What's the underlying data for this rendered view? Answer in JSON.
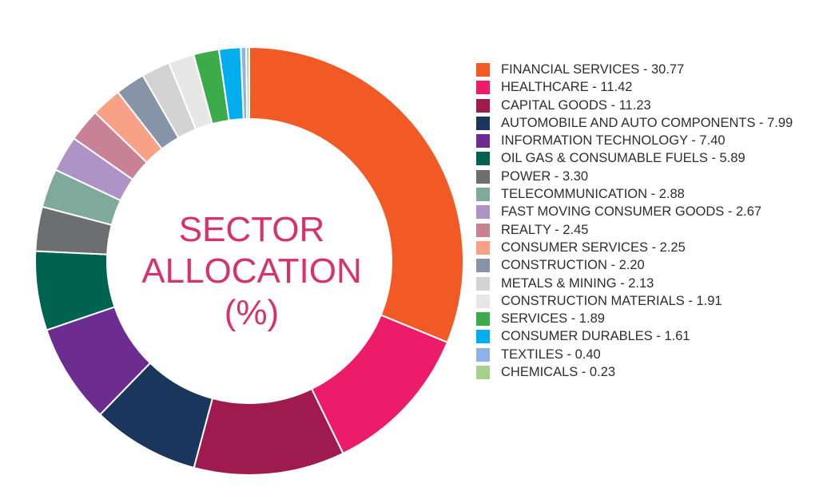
{
  "chart_data": {
    "type": "pie",
    "title_lines": [
      "SECTOR",
      "ALLOCATION",
      "(%)"
    ],
    "series": [
      {
        "label": "FINANCIAL SERVICES - 30.77",
        "value": 30.77,
        "color": "#f15a24"
      },
      {
        "label": "HEALTHCARE - 11.42",
        "value": 11.42,
        "color": "#ec1c6b"
      },
      {
        "label": "CAPITAL GOODS - 11.23",
        "value": 11.23,
        "color": "#9e1a4f"
      },
      {
        "label": "AUTOMOBILE AND AUTO COMPONENTS - 7.99",
        "value": 7.99,
        "color": "#1b365d"
      },
      {
        "label": "INFORMATION TECHNOLOGY - 7.40",
        "value": 7.4,
        "color": "#6d2c8f"
      },
      {
        "label": "OIL GAS & CONSUMABLE FUELS - 5.89",
        "value": 5.89,
        "color": "#00634f"
      },
      {
        "label": "POWER - 3.30",
        "value": 3.3,
        "color": "#6d6e70"
      },
      {
        "label": "TELECOMMUNICATION - 2.88",
        "value": 2.88,
        "color": "#7fa99b"
      },
      {
        "label": "FAST MOVING CONSUMER GOODS - 2.67",
        "value": 2.67,
        "color": "#ad93c6"
      },
      {
        "label": "REALTY - 2.45",
        "value": 2.45,
        "color": "#c98195"
      },
      {
        "label": "CONSUMER SERVICES - 2.25",
        "value": 2.25,
        "color": "#f7a286"
      },
      {
        "label": "CONSTRUCTION - 2.20",
        "value": 2.2,
        "color": "#8794a8"
      },
      {
        "label": "METALS & MINING - 2.13",
        "value": 2.13,
        "color": "#d3d3d3"
      },
      {
        "label": "CONSTRUCTION MATERIALS - 1.91",
        "value": 1.91,
        "color": "#e7e7e7"
      },
      {
        "label": "SERVICES - 1.89",
        "value": 1.89,
        "color": "#3bac49"
      },
      {
        "label": "CONSUMER DURABLES - 1.61",
        "value": 1.61,
        "color": "#00aeef"
      },
      {
        "label": "TEXTILES - 0.40",
        "value": 0.4,
        "color": "#8fb3e5"
      },
      {
        "label": "CHEMICALS - 0.23",
        "value": 0.23,
        "color": "#a8d08d"
      }
    ]
  }
}
